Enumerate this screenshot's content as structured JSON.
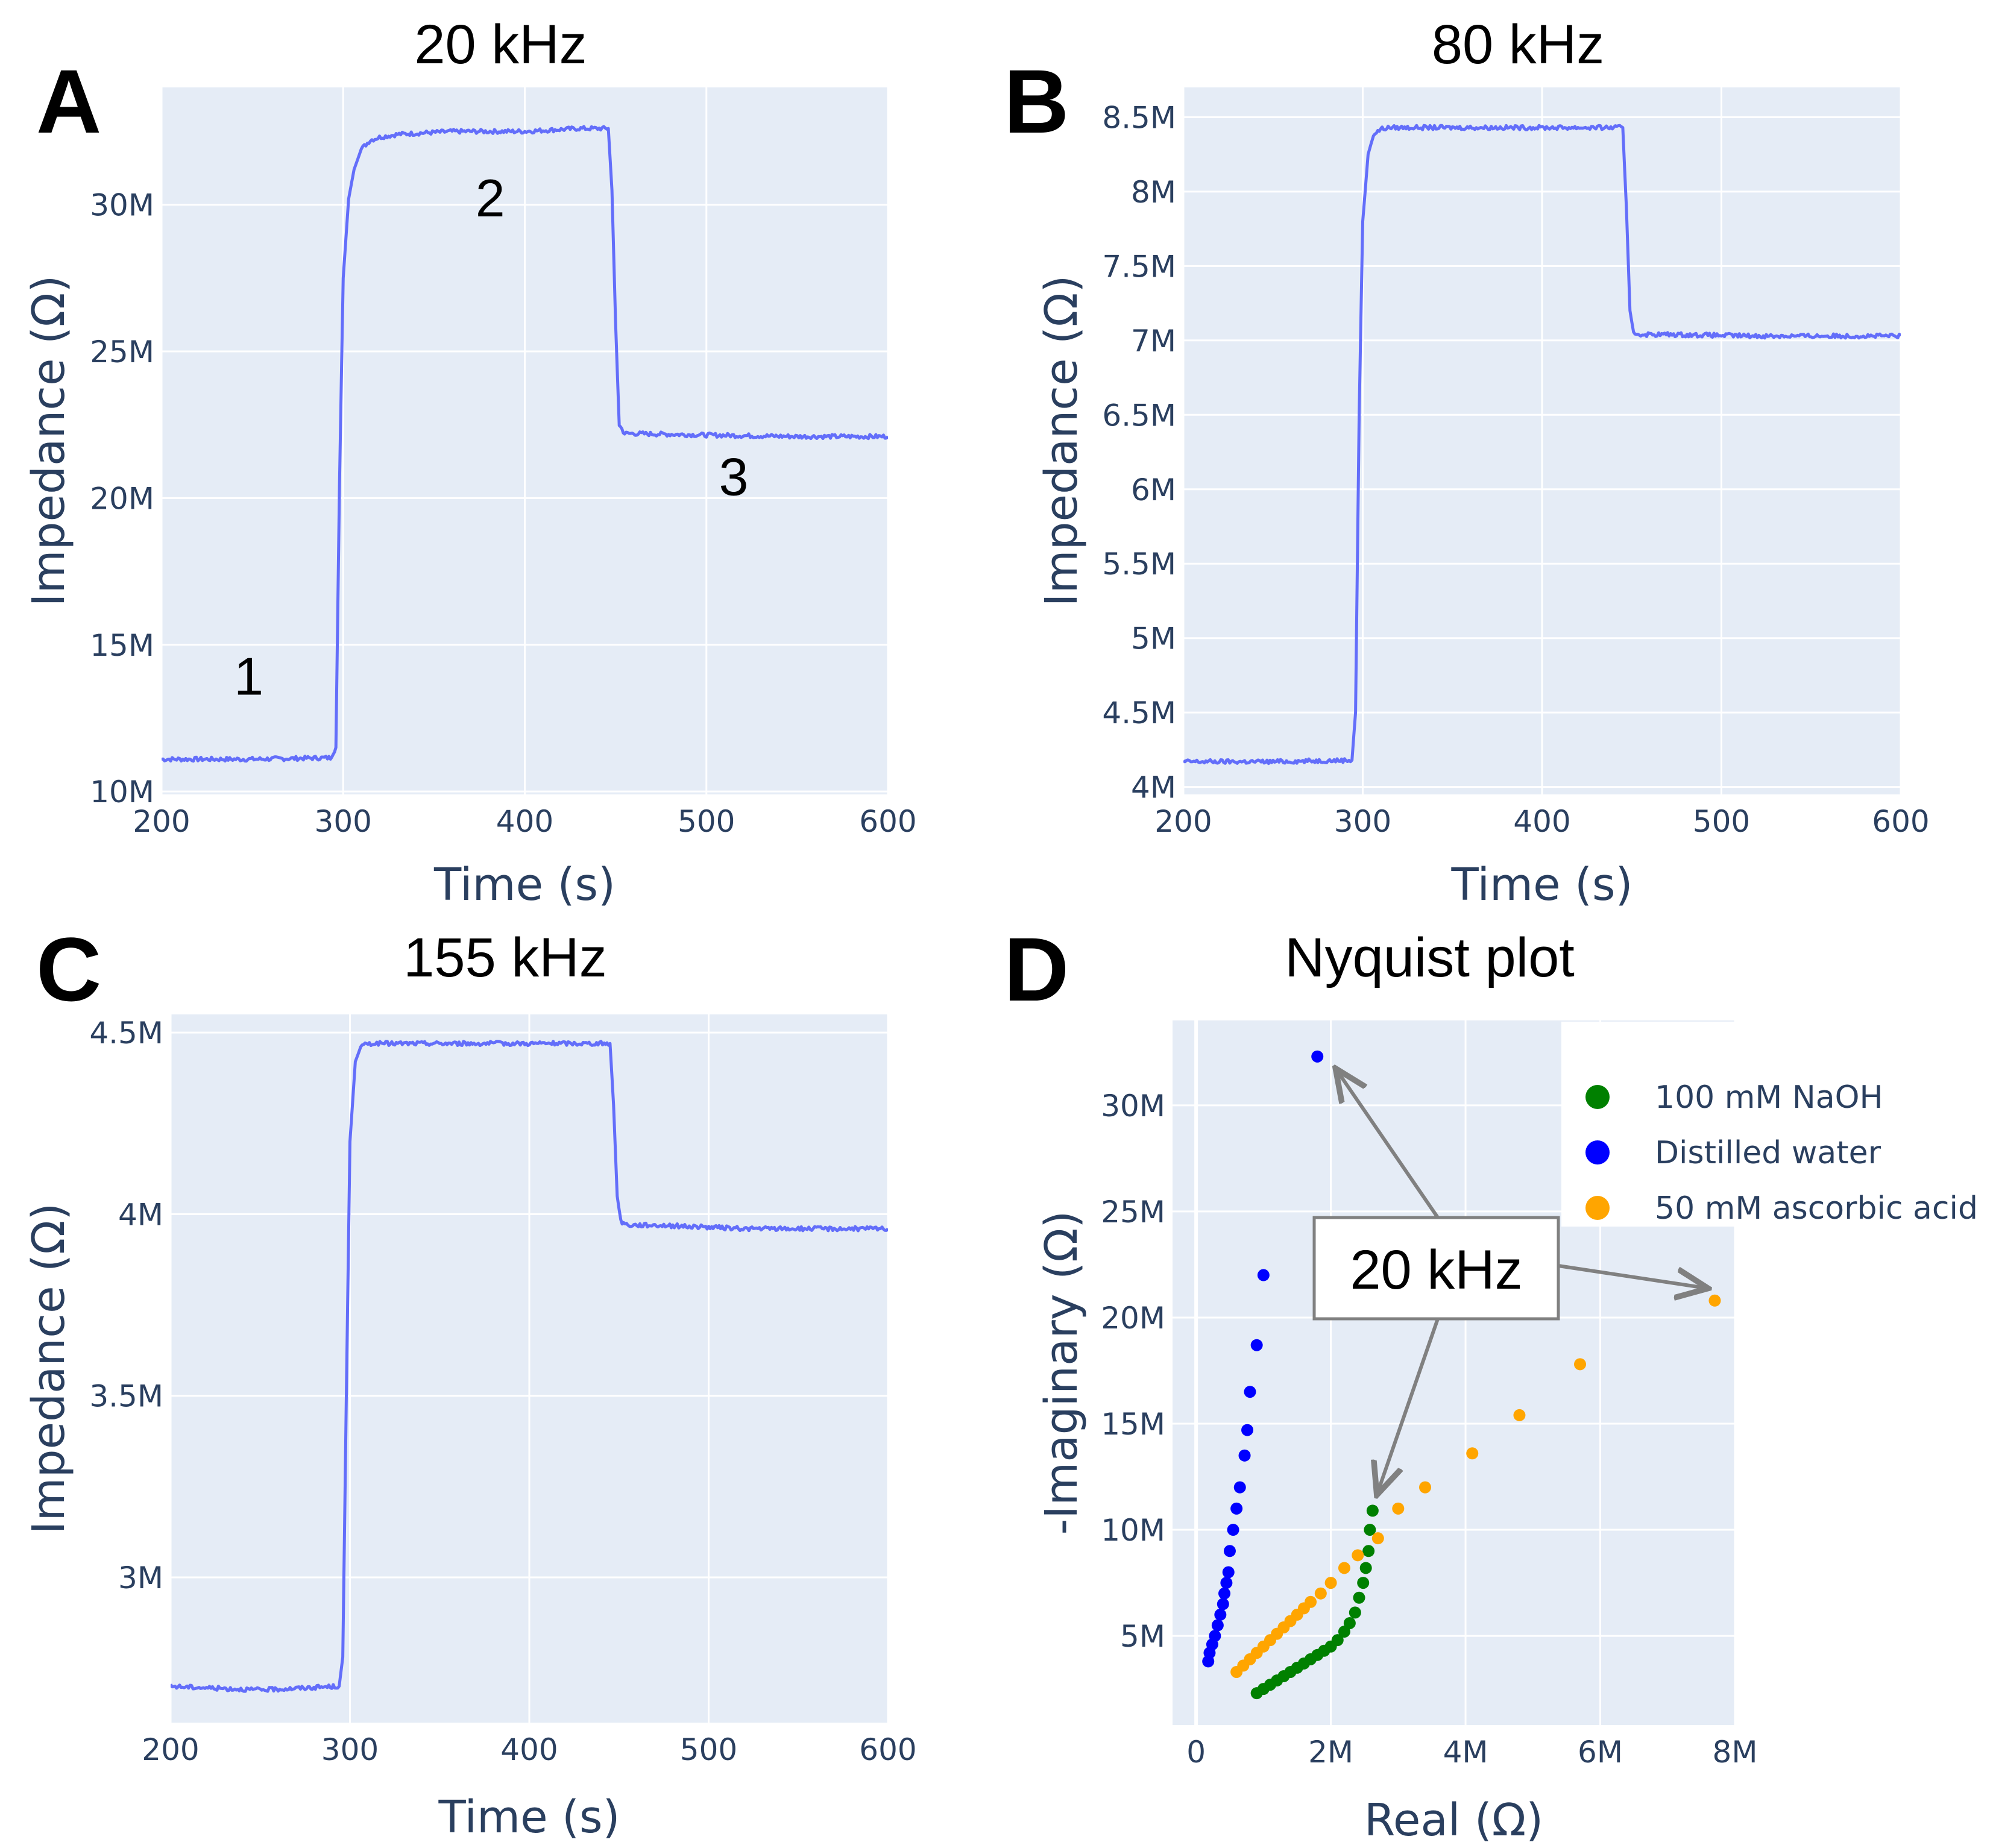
{
  "chart_data": [
    {
      "id": "A",
      "type": "line",
      "panel_label": "A",
      "title": "20 kHz",
      "xlabel": "Time (s)",
      "ylabel": "Impedance (Ω)",
      "xlim": [
        200,
        600
      ],
      "ylim": [
        9.9,
        34.0
      ],
      "x_ticks": [
        200,
        300,
        400,
        500,
        600
      ],
      "x_tick_labels": [
        "200",
        "300",
        "400",
        "500",
        "600"
      ],
      "y_ticks": [
        10,
        15,
        20,
        25,
        30
      ],
      "y_tick_labels": [
        "10M",
        "15M",
        "20M",
        "25M",
        "30M"
      ],
      "series": [
        {
          "name": "Impedance",
          "color": "#636efa",
          "x": [
            200,
            250,
            293,
            296,
            298,
            300,
            303,
            306,
            310,
            315,
            320,
            330,
            360,
            400,
            430,
            446,
            448,
            450,
            452,
            455,
            460,
            500,
            550,
            600
          ],
          "y": [
            11.1,
            11.1,
            11.15,
            11.5,
            20.5,
            27.5,
            30.2,
            31.2,
            31.9,
            32.2,
            32.3,
            32.4,
            32.5,
            32.5,
            32.6,
            32.6,
            30.5,
            26.0,
            22.5,
            22.2,
            22.2,
            22.15,
            22.1,
            22.1
          ]
        }
      ],
      "annotations": [
        {
          "text": "1",
          "x": 248,
          "y": 13.3
        },
        {
          "text": "2",
          "x": 381,
          "y": 29.6
        },
        {
          "text": "3",
          "x": 515,
          "y": 20.1
        }
      ]
    },
    {
      "id": "B",
      "type": "line",
      "panel_label": "B",
      "title": "80 kHz",
      "xlabel": "Time (s)",
      "ylabel": "Impedance (Ω)",
      "xlim": [
        200,
        600
      ],
      "ylim": [
        3.95,
        8.7
      ],
      "x_ticks": [
        200,
        300,
        400,
        500,
        600
      ],
      "x_tick_labels": [
        "200",
        "300",
        "400",
        "500",
        "600"
      ],
      "y_ticks": [
        4,
        4.5,
        5,
        5.5,
        6,
        6.5,
        7,
        7.5,
        8,
        8.5
      ],
      "y_tick_labels": [
        "4M",
        "4.5M",
        "5M",
        "5.5M",
        "6M",
        "6.5M",
        "7M",
        "7.5M",
        "8M",
        "8.5M"
      ],
      "series": [
        {
          "name": "Impedance",
          "color": "#636efa",
          "x": [
            200,
            250,
            294,
            296,
            298,
            300,
            303,
            306,
            310,
            315,
            320,
            360,
            400,
            445,
            447,
            449,
            451,
            455,
            470,
            520,
            560,
            600
          ],
          "y": [
            4.17,
            4.17,
            4.18,
            4.5,
            6.5,
            7.8,
            8.25,
            8.38,
            8.42,
            8.43,
            8.43,
            8.43,
            8.43,
            8.43,
            7.9,
            7.2,
            7.05,
            7.04,
            7.04,
            7.03,
            7.03,
            7.03
          ]
        }
      ],
      "annotations": []
    },
    {
      "id": "C",
      "type": "line",
      "panel_label": "C",
      "title": "155 kHz",
      "xlabel": "Time (s)",
      "ylabel": "Impedance (Ω)",
      "xlim": [
        200,
        600
      ],
      "ylim": [
        2.6,
        4.55
      ],
      "x_ticks": [
        200,
        300,
        400,
        500,
        600
      ],
      "x_tick_labels": [
        "200",
        "300",
        "400",
        "500",
        "600"
      ],
      "y_ticks": [
        3,
        3.5,
        4,
        4.5
      ],
      "y_tick_labels": [
        "3M",
        "3.5M",
        "4M",
        "4.5M"
      ],
      "series": [
        {
          "name": "Impedance",
          "color": "#636efa",
          "x": [
            200,
            250,
            294,
            296,
            298,
            300,
            303,
            306,
            310,
            320,
            360,
            400,
            445,
            447,
            449,
            451,
            455,
            470,
            520,
            560,
            600
          ],
          "y": [
            2.7,
            2.69,
            2.7,
            2.78,
            3.5,
            4.2,
            4.42,
            4.46,
            4.47,
            4.47,
            4.47,
            4.47,
            4.47,
            4.3,
            4.05,
            3.98,
            3.97,
            3.97,
            3.96,
            3.96,
            3.96
          ]
        }
      ],
      "annotations": []
    },
    {
      "id": "D",
      "type": "scatter",
      "panel_label": "D",
      "title": "Nyquist plot",
      "xlabel": "Real (Ω)",
      "ylabel": "-Imaginary (Ω)",
      "xlim": [
        -0.35,
        8.0
      ],
      "ylim": [
        0.8,
        34.0
      ],
      "x_ticks": [
        0,
        2,
        4,
        6,
        8
      ],
      "x_tick_labels": [
        "0",
        "2M",
        "4M",
        "6M",
        "8M"
      ],
      "y_ticks": [
        5,
        10,
        15,
        20,
        25,
        30
      ],
      "y_tick_labels": [
        "5M",
        "10M",
        "15M",
        "20M",
        "25M",
        "30M"
      ],
      "legend_position": "top-right",
      "series": [
        {
          "name": "100 mM NaOH",
          "color": "#008000",
          "x": [
            0.9,
            1.0,
            1.1,
            1.2,
            1.3,
            1.4,
            1.5,
            1.6,
            1.7,
            1.8,
            1.9,
            2.0,
            2.1,
            2.2,
            2.28,
            2.36,
            2.42,
            2.48,
            2.52,
            2.56,
            2.58,
            2.62
          ],
          "y": [
            2.3,
            2.5,
            2.7,
            2.9,
            3.1,
            3.3,
            3.5,
            3.7,
            3.9,
            4.1,
            4.3,
            4.5,
            4.8,
            5.2,
            5.6,
            6.1,
            6.8,
            7.5,
            8.2,
            9.0,
            10.0,
            10.9
          ]
        },
        {
          "name": "Distilled water",
          "color": "#0000ff",
          "x": [
            0.18,
            0.2,
            0.24,
            0.28,
            0.32,
            0.36,
            0.4,
            0.42,
            0.45,
            0.48,
            0.5,
            0.55,
            0.6,
            0.65,
            0.72,
            0.76,
            0.8,
            0.9,
            1.0,
            1.8
          ],
          "y": [
            3.8,
            4.2,
            4.6,
            5.0,
            5.5,
            6.0,
            6.5,
            7.0,
            7.5,
            8.0,
            9.0,
            10.0,
            11.0,
            12.0,
            13.5,
            14.7,
            16.5,
            18.7,
            22.0,
            32.3
          ]
        },
        {
          "name": "50 mM ascorbic acid",
          "color": "#ffa500",
          "x": [
            0.6,
            0.7,
            0.8,
            0.9,
            1.0,
            1.1,
            1.2,
            1.3,
            1.4,
            1.5,
            1.6,
            1.7,
            1.85,
            2.0,
            2.2,
            2.4,
            2.7,
            3.0,
            3.4,
            4.1,
            4.8,
            5.7,
            7.7
          ],
          "y": [
            3.3,
            3.6,
            3.9,
            4.2,
            4.5,
            4.8,
            5.1,
            5.4,
            5.7,
            6.0,
            6.3,
            6.6,
            7.0,
            7.5,
            8.2,
            8.8,
            9.6,
            11.0,
            12.0,
            13.6,
            15.4,
            17.8,
            20.8
          ]
        }
      ],
      "callout": {
        "text": "20 kHz",
        "targets": [
          {
            "x": 2.1,
            "y": 31.6
          },
          {
            "x": 7.55,
            "y": 21.4
          },
          {
            "x": 2.7,
            "y": 11.8
          }
        ]
      }
    }
  ]
}
